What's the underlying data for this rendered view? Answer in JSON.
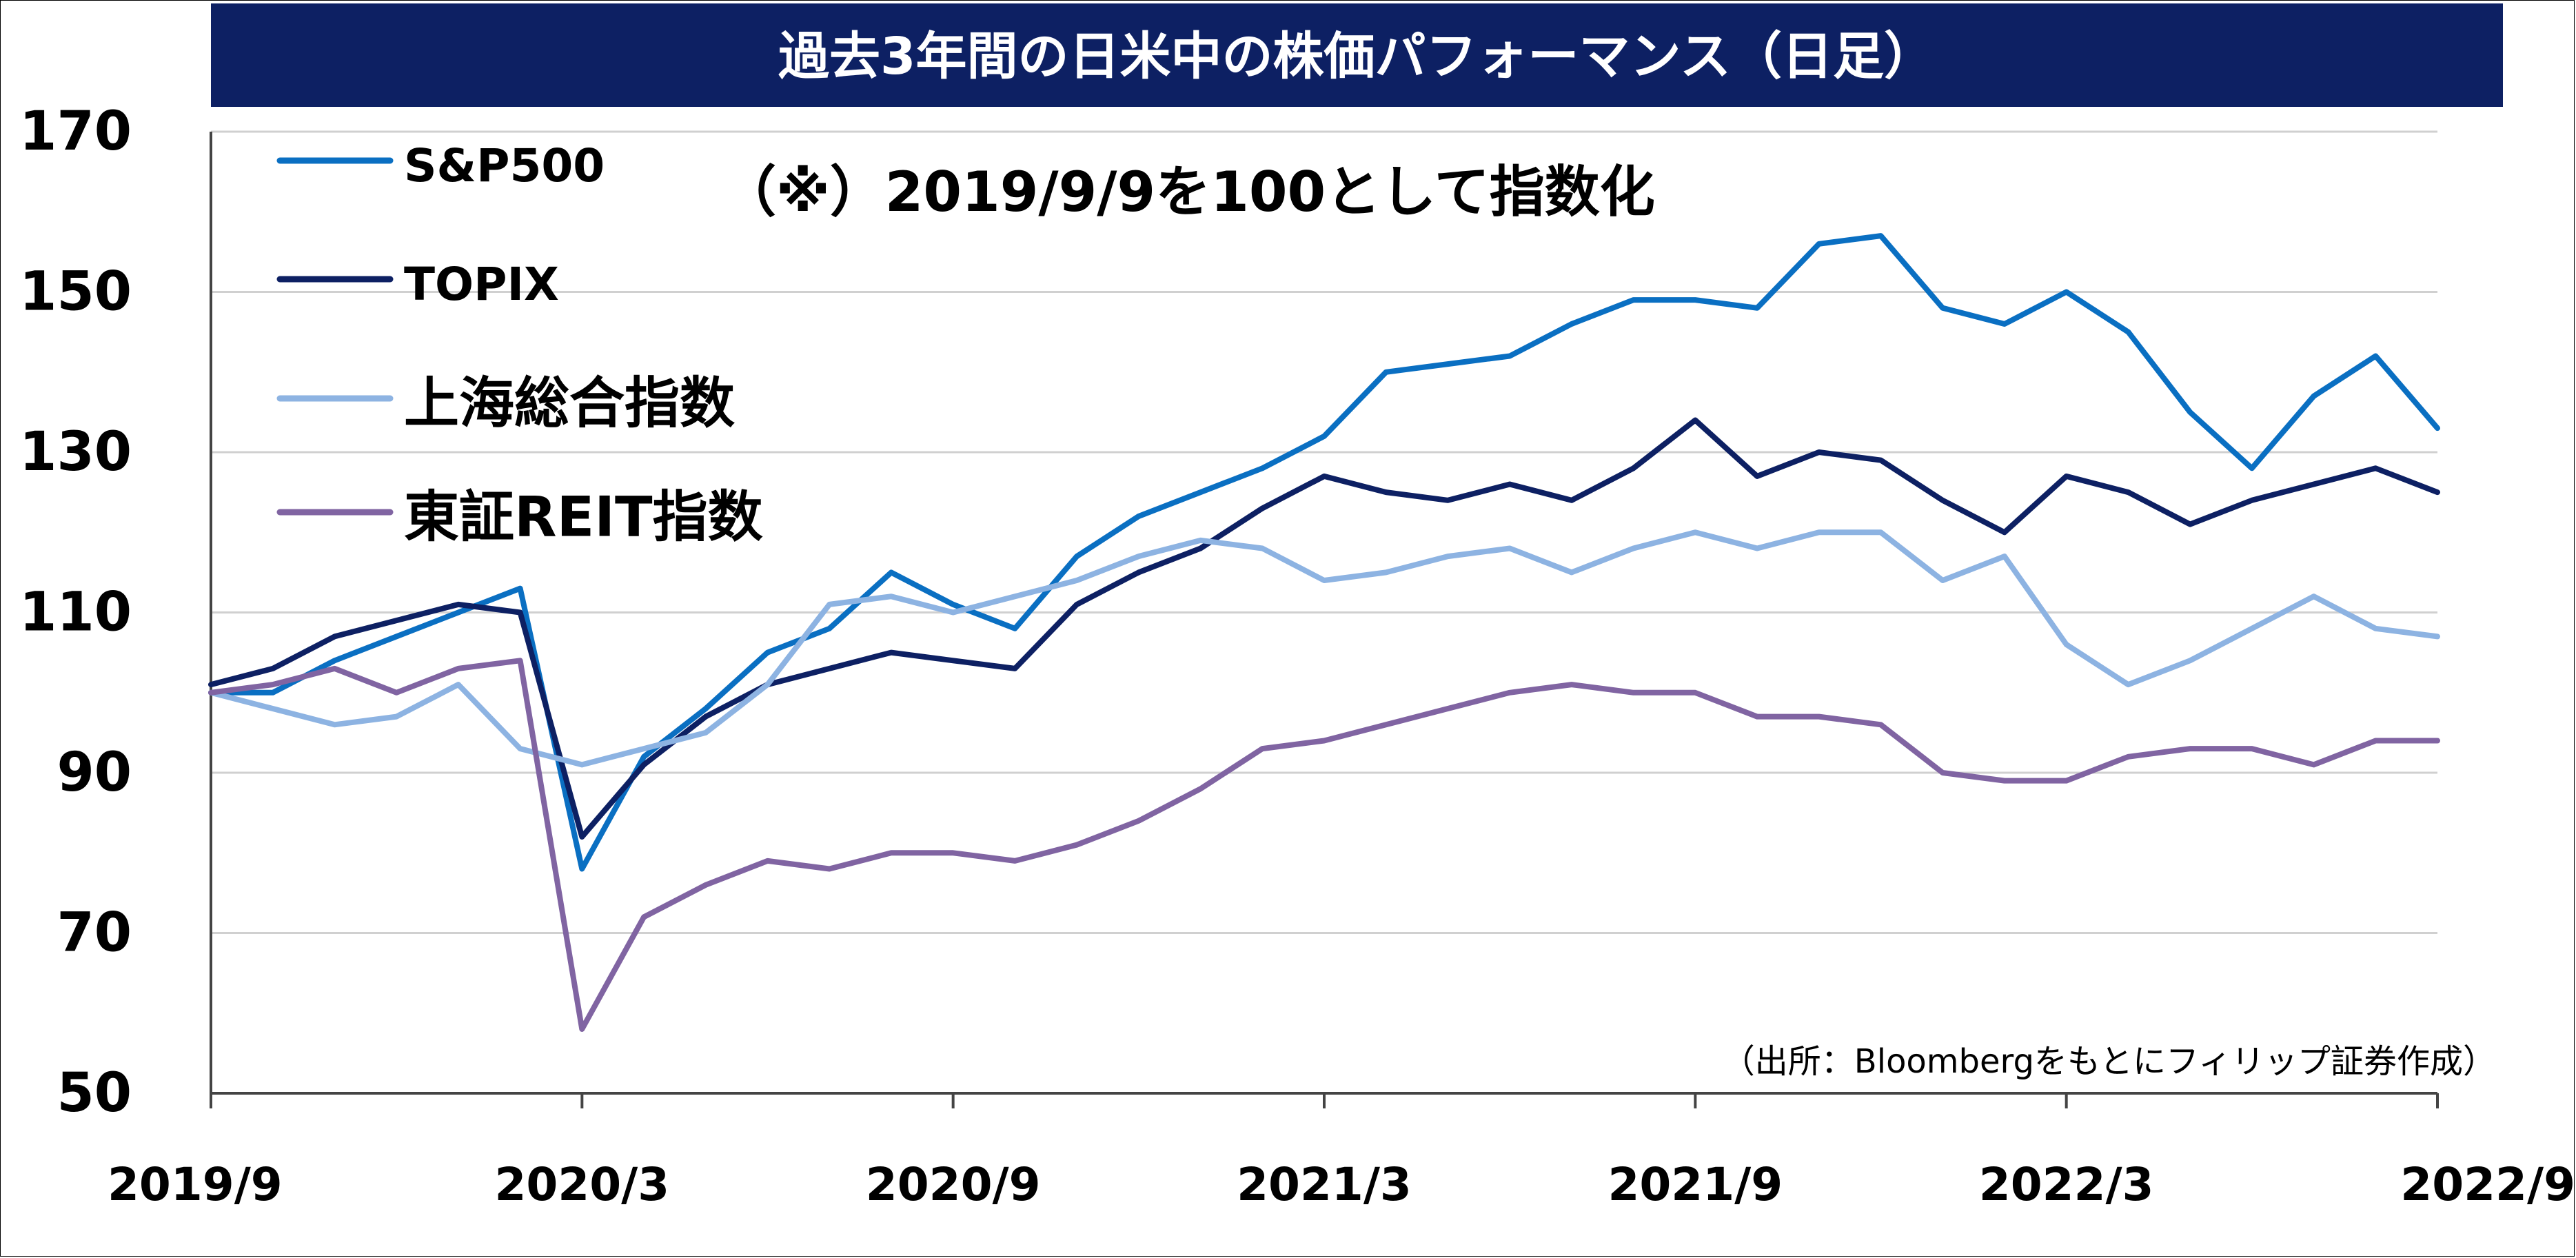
{
  "chart_data": {
    "type": "line",
    "title": "過去3年間の日米中の株価パフォーマンス（日足）",
    "note": "（※）2019/9/9を100として指数化",
    "source": "（出所：Bloombergをもとにフィリップ証券作成）",
    "xlabel": "",
    "ylabel": "",
    "ylim": [
      50,
      170
    ],
    "yticks": [
      "50",
      "70",
      "90",
      "110",
      "130",
      "150",
      "170"
    ],
    "xticks": [
      "2019/9",
      "2020/3",
      "2020/9",
      "2021/3",
      "2021/9",
      "2022/3",
      "2022/9"
    ],
    "grid": true,
    "legend": "top-left",
    "x": [
      "2019/9",
      "2019/10",
      "2019/11",
      "2019/12",
      "2020/1",
      "2020/2",
      "2020/3",
      "2020/4",
      "2020/5",
      "2020/6",
      "2020/7",
      "2020/8",
      "2020/9",
      "2020/10",
      "2020/11",
      "2020/12",
      "2021/1",
      "2021/2",
      "2021/3",
      "2021/4",
      "2021/5",
      "2021/6",
      "2021/7",
      "2021/8",
      "2021/9",
      "2021/10",
      "2021/11",
      "2021/12",
      "2022/1",
      "2022/2",
      "2022/3",
      "2022/4",
      "2022/5",
      "2022/6",
      "2022/7",
      "2022/8",
      "2022/9"
    ],
    "series": [
      {
        "name": "S&P500",
        "color": "#0a6fc2",
        "values": [
          100,
          100,
          104,
          107,
          110,
          113,
          78,
          92,
          98,
          105,
          108,
          115,
          111,
          108,
          117,
          122,
          125,
          128,
          132,
          140,
          141,
          142,
          146,
          149,
          149,
          148,
          156,
          157,
          148,
          146,
          150,
          145,
          135,
          128,
          137,
          142,
          133
        ]
      },
      {
        "name": "TOPIX",
        "color": "#0d2063",
        "values": [
          101,
          103,
          107,
          109,
          111,
          110,
          82,
          91,
          97,
          101,
          103,
          105,
          104,
          103,
          111,
          115,
          118,
          123,
          127,
          125,
          124,
          126,
          124,
          128,
          134,
          127,
          130,
          129,
          124,
          120,
          127,
          125,
          121,
          124,
          126,
          128,
          125
        ]
      },
      {
        "name": "上海総合指数",
        "color": "#8db3e2",
        "values": [
          100,
          98,
          96,
          97,
          101,
          93,
          91,
          93,
          95,
          101,
          111,
          112,
          110,
          112,
          114,
          117,
          119,
          118,
          114,
          115,
          117,
          118,
          115,
          118,
          120,
          118,
          120,
          120,
          114,
          117,
          106,
          101,
          104,
          108,
          112,
          108,
          107
        ]
      },
      {
        "name": "東証REIT指数",
        "color": "#8064a2",
        "values": [
          100,
          101,
          103,
          100,
          103,
          104,
          58,
          72,
          76,
          79,
          78,
          80,
          80,
          79,
          81,
          84,
          88,
          93,
          94,
          96,
          98,
          100,
          101,
          100,
          100,
          97,
          97,
          96,
          90,
          89,
          89,
          92,
          93,
          93,
          91,
          94,
          94
        ]
      }
    ]
  }
}
